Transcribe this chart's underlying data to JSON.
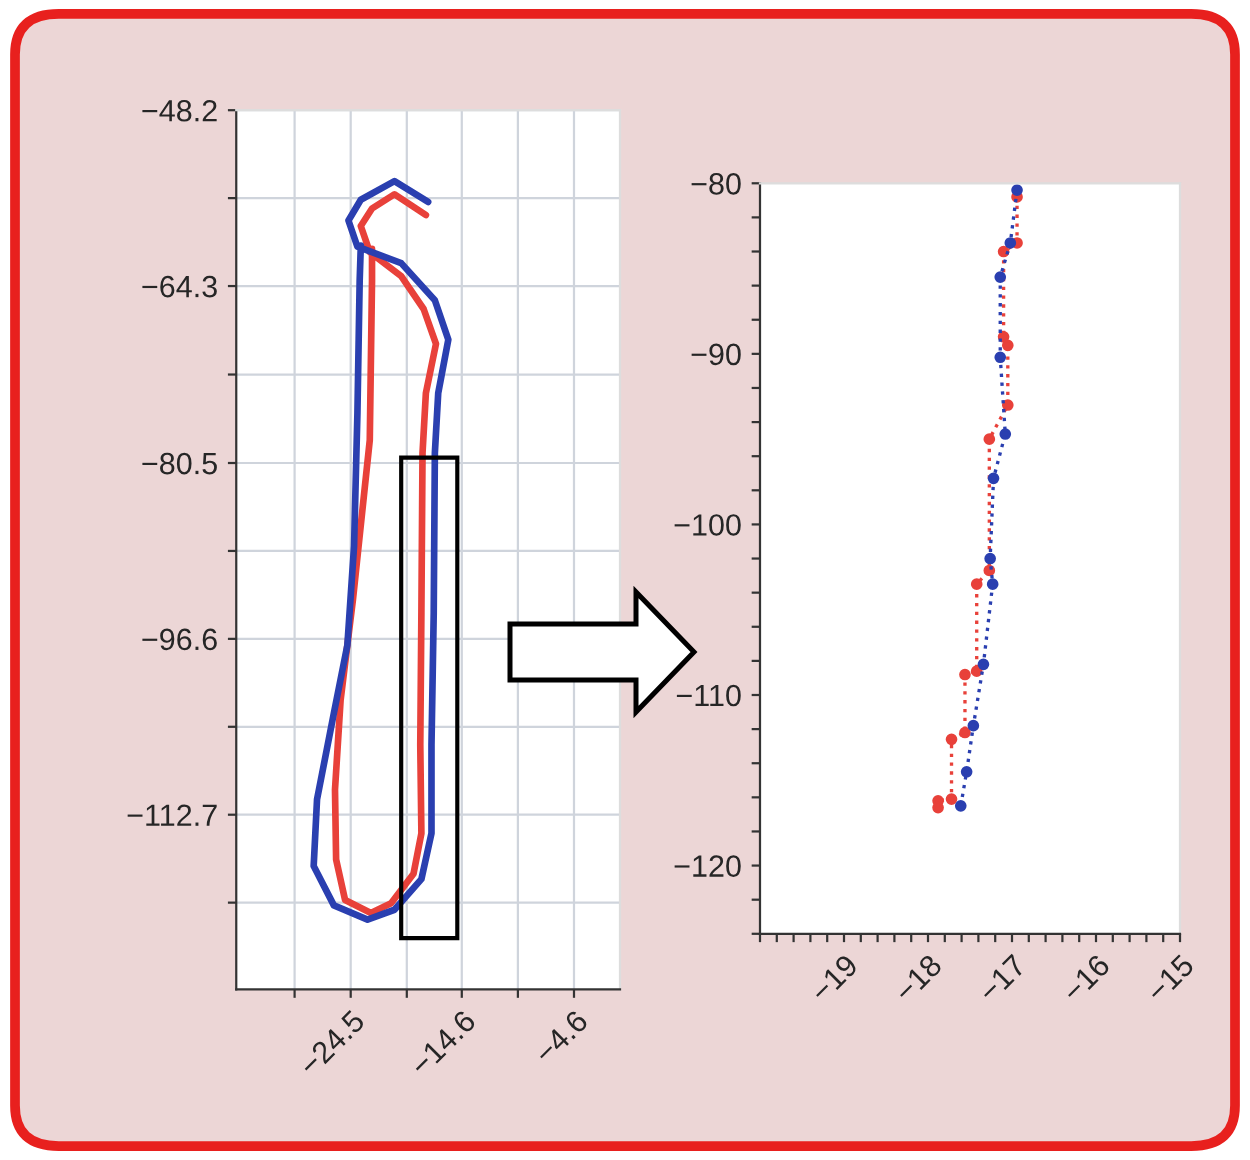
{
  "chart_data": [
    {
      "type": "line",
      "xlim": [
        -34.7,
        -0.5
      ],
      "ylim": [
        -128.7,
        -48.2
      ],
      "xticks": [
        {
          "value": -29.5,
          "label": null
        },
        -24.5,
        {
          "value": -19.5,
          "label": null
        },
        -14.6,
        {
          "value": -9.6,
          "label": null
        },
        -4.6
      ],
      "yticks": [
        -48.2,
        {
          "value": -56.25,
          "label": null
        },
        -64.3,
        {
          "value": -72.4,
          "label": null
        },
        -80.5,
        {
          "value": -88.55,
          "label": null
        },
        -96.6,
        {
          "value": -104.65,
          "label": null
        },
        -112.7,
        {
          "value": -120.75,
          "label": null
        }
      ],
      "grid": true,
      "marker": "none",
      "line_style": "solid",
      "series": [
        {
          "color": "#e8413a",
          "x": [
            -17.8,
            -20.6,
            -22.6,
            -23.6,
            -22.8,
            -20.0,
            -18.0,
            -16.9,
            -17.8,
            -18.1,
            -18.2,
            -18.3,
            -18.2,
            -18.9,
            -20.9,
            -22.7,
            -25.0,
            -25.8,
            -25.9,
            -25.4,
            -24.3,
            -22.8,
            -22.6,
            -22.6
          ],
          "values": [
            -57.8,
            -55.9,
            -57.2,
            -58.8,
            -61.2,
            -63.4,
            -66.4,
            -69.6,
            -74.1,
            -79.6,
            -94.2,
            -106.3,
            -114.4,
            -118.1,
            -120.8,
            -121.7,
            -120.5,
            -116.8,
            -110.4,
            -102.2,
            -93.0,
            -78.4,
            -63.8,
            -60.9
          ]
        },
        {
          "color": "#2a3fb0",
          "x": [
            -17.6,
            -20.6,
            -23.6,
            -24.7,
            -23.9,
            -20.0,
            -17.0,
            -15.8,
            -16.7,
            -17.0,
            -17.1,
            -17.3,
            -17.3,
            -18.2,
            -20.6,
            -23.0,
            -26.0,
            -27.8,
            -27.5,
            -26.0,
            -24.8,
            -24.2,
            -23.9,
            -23.7,
            -23.6
          ],
          "values": [
            -56.6,
            -54.7,
            -56.4,
            -58.3,
            -60.7,
            -62.2,
            -65.6,
            -69.2,
            -74.1,
            -79.6,
            -94.2,
            -106.3,
            -114.4,
            -118.6,
            -121.4,
            -122.3,
            -121.0,
            -117.4,
            -111.3,
            -103.4,
            -97.2,
            -88.1,
            -75.9,
            -63.8,
            -60.6
          ]
        }
      ]
    },
    {
      "type": "line",
      "xlim": [
        -20,
        -15
      ],
      "ylim": [
        -124,
        -80
      ],
      "xticks": [
        {
          "value": -20,
          "label": null
        },
        {
          "value": -19.8,
          "label": null
        },
        {
          "value": -19.6,
          "label": null
        },
        {
          "value": -19.4,
          "label": null
        },
        {
          "value": -19.2,
          "label": null
        },
        -19,
        {
          "value": -18.8,
          "label": null
        },
        {
          "value": -18.6,
          "label": null
        },
        {
          "value": -18.4,
          "label": null
        },
        {
          "value": -18.2,
          "label": null
        },
        -18,
        {
          "value": -17.8,
          "label": null
        },
        {
          "value": -17.6,
          "label": null
        },
        {
          "value": -17.4,
          "label": null
        },
        {
          "value": -17.2,
          "label": null
        },
        -17,
        {
          "value": -16.8,
          "label": null
        },
        {
          "value": -16.6,
          "label": null
        },
        {
          "value": -16.4,
          "label": null
        },
        {
          "value": -16.2,
          "label": null
        },
        -16,
        {
          "value": -15.8,
          "label": null
        },
        {
          "value": -15.6,
          "label": null
        },
        {
          "value": -15.4,
          "label": null
        },
        {
          "value": -15.2,
          "label": null
        },
        -15
      ],
      "yticks": [
        {
          "value": -124,
          "label": null
        },
        {
          "value": -122,
          "label": null
        },
        -120,
        {
          "value": -118,
          "label": null
        },
        {
          "value": -116,
          "label": null
        },
        {
          "value": -114,
          "label": null
        },
        {
          "value": -112,
          "label": null
        },
        -110,
        {
          "value": -108,
          "label": null
        },
        {
          "value": -106,
          "label": null
        },
        {
          "value": -104,
          "label": null
        },
        {
          "value": -102,
          "label": null
        },
        -100,
        {
          "value": -98,
          "label": null
        },
        {
          "value": -96,
          "label": null
        },
        {
          "value": -94,
          "label": null
        },
        {
          "value": -92,
          "label": null
        },
        -90,
        {
          "value": -88,
          "label": null
        },
        {
          "value": -86,
          "label": null
        },
        {
          "value": -84,
          "label": null
        },
        {
          "value": -82,
          "label": null
        },
        -80
      ],
      "grid": false,
      "marker": "circle",
      "line_style": "dotted",
      "series": [
        {
          "color": "#e8413a",
          "x": [
            -16.94,
            -16.94,
            -17.1,
            -17.1,
            -17.05,
            -17.05,
            -17.27,
            -17.27,
            -17.42,
            -17.42,
            -17.56,
            -17.56,
            -17.72,
            -17.72,
            -17.88,
            -17.88
          ],
          "values": [
            -80.8,
            -83.5,
            -84.0,
            -89.0,
            -89.5,
            -93.0,
            -95.0,
            -102.7,
            -103.5,
            -108.6,
            -108.8,
            -112.2,
            -112.6,
            -116.1,
            -116.2,
            -116.6
          ]
        },
        {
          "color": "#2a3fb0",
          "x": [
            -16.94,
            -17.02,
            -17.14,
            -17.14,
            -17.08,
            -17.22,
            -17.26,
            -17.23,
            -17.34,
            -17.46,
            -17.54,
            -17.61
          ],
          "values": [
            -80.4,
            -83.5,
            -85.5,
            -90.2,
            -94.7,
            -97.3,
            -102.0,
            -103.5,
            -108.2,
            -111.8,
            -114.5,
            -116.5
          ]
        }
      ]
    }
  ]
}
